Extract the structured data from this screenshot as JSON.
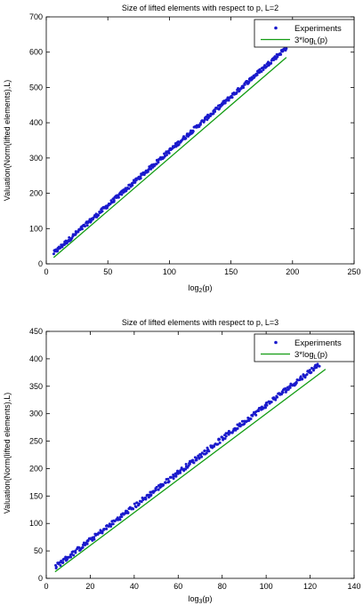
{
  "colors": {
    "experiments": "#1a1acc",
    "fit_line": "#129c12",
    "axes": "#000000",
    "background": "#ffffff"
  },
  "chart_data": [
    {
      "type": "scatter",
      "title": "Size of lifted elements with respect to p, L=2",
      "xlabel": {
        "base": "log",
        "sub": "2",
        "rest": "(p)"
      },
      "ylabel": "Valuation(Norm(lifted elements),L)",
      "xlim": [
        0,
        250
      ],
      "ylim": [
        0,
        700
      ],
      "xticks": [
        "0",
        "50",
        "100",
        "150",
        "200",
        "250"
      ],
      "yticks": [
        "0",
        "100",
        "200",
        "300",
        "400",
        "500",
        "600",
        "700"
      ],
      "grid": false,
      "legend_position": "top-right",
      "series": [
        {
          "name": "Experiments",
          "kind": "points",
          "x_range": [
            6,
            195
          ],
          "slope": 3.08,
          "intercept": 12,
          "spread": 12,
          "n": 420
        },
        {
          "name_parts": {
            "base": "3*log",
            "sub": "L",
            "rest": "(p)"
          },
          "kind": "line",
          "x": [
            6,
            195
          ],
          "y": [
            18,
            585
          ]
        }
      ]
    },
    {
      "type": "scatter",
      "title": "Size of lifted elements with respect to p, L=3",
      "xlabel": {
        "base": "log",
        "sub": "3",
        "rest": "(p)"
      },
      "ylabel": "Valuation(Norm(lifted elements),L)",
      "xlim": [
        0,
        140
      ],
      "ylim": [
        0,
        450
      ],
      "xticks": [
        "0",
        "20",
        "40",
        "60",
        "80",
        "100",
        "120",
        "140"
      ],
      "yticks": [
        "0",
        "50",
        "100",
        "150",
        "200",
        "250",
        "300",
        "350",
        "400",
        "450"
      ],
      "grid": false,
      "legend_position": "top-right",
      "series": [
        {
          "name": "Experiments",
          "kind": "points",
          "x_range": [
            4,
            124
          ],
          "slope": 3.08,
          "intercept": 8,
          "spread": 9,
          "n": 360
        },
        {
          "name_parts": {
            "base": "3*log",
            "sub": "L",
            "rest": "(p)"
          },
          "kind": "line",
          "x": [
            4,
            127
          ],
          "y": [
            12,
            381
          ]
        }
      ]
    }
  ]
}
